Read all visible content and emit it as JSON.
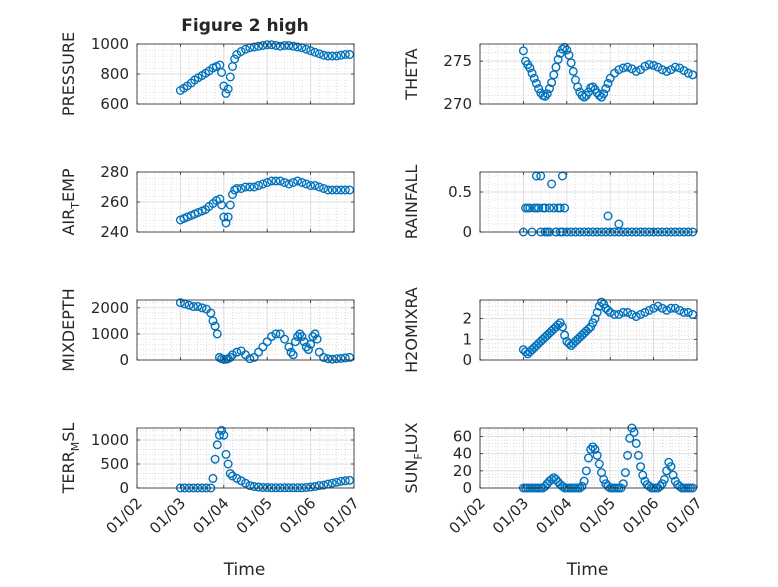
{
  "figure_title": "Figure 2 high",
  "marker_color": "#0072BD",
  "x_tick_labels": [
    "01/02",
    "01/03",
    "01/04",
    "01/05",
    "01/06",
    "01/07"
  ],
  "x_label": "Time",
  "chart_data": [
    {
      "type": "scatter",
      "ylabel": "PRESSURE",
      "ylim": [
        600,
        1000
      ],
      "yticks": [
        600,
        800,
        1000
      ],
      "xlim": [
        1,
        6
      ],
      "xticks": [
        1,
        2,
        3,
        4,
        5,
        6
      ],
      "grid": true,
      "x": [
        2.0,
        2.08,
        2.16,
        2.25,
        2.33,
        2.41,
        2.5,
        2.58,
        2.66,
        2.75,
        2.83,
        2.91,
        2.95,
        3.0,
        3.05,
        3.1,
        3.15,
        3.2,
        3.25,
        3.3,
        3.4,
        3.5,
        3.6,
        3.7,
        3.8,
        3.9,
        4.0,
        4.1,
        4.2,
        4.3,
        4.4,
        4.5,
        4.6,
        4.7,
        4.8,
        4.9,
        5.0,
        5.1,
        5.2,
        5.3,
        5.4,
        5.5,
        5.6,
        5.7,
        5.8,
        5.9
      ],
      "y": [
        690,
        705,
        720,
        740,
        760,
        775,
        790,
        805,
        820,
        840,
        850,
        860,
        810,
        720,
        670,
        700,
        780,
        850,
        900,
        930,
        950,
        965,
        975,
        980,
        985,
        990,
        995,
        995,
        990,
        985,
        990,
        990,
        985,
        980,
        975,
        965,
        955,
        945,
        935,
        925,
        920,
        920,
        920,
        925,
        930,
        930
      ]
    },
    {
      "type": "scatter",
      "ylabel": "THETA",
      "ylim": [
        270,
        277
      ],
      "yticks": [
        270,
        275
      ],
      "xlim": [
        1,
        6
      ],
      "xticks": [
        1,
        2,
        3,
        4,
        5,
        6
      ],
      "grid": true,
      "x": [
        2.0,
        2.05,
        2.1,
        2.15,
        2.2,
        2.25,
        2.3,
        2.35,
        2.4,
        2.45,
        2.5,
        2.55,
        2.6,
        2.65,
        2.7,
        2.75,
        2.8,
        2.85,
        2.9,
        2.95,
        3.0,
        3.05,
        3.1,
        3.15,
        3.2,
        3.25,
        3.3,
        3.35,
        3.4,
        3.45,
        3.5,
        3.55,
        3.6,
        3.65,
        3.7,
        3.75,
        3.8,
        3.85,
        3.9,
        3.95,
        4.0,
        4.1,
        4.2,
        4.3,
        4.4,
        4.5,
        4.6,
        4.7,
        4.8,
        4.9,
        5.0,
        5.1,
        5.2,
        5.3,
        5.4,
        5.5,
        5.6,
        5.7,
        5.8,
        5.9
      ],
      "y": [
        276.2,
        275.0,
        274.6,
        274.2,
        273.6,
        273.0,
        272.4,
        271.8,
        271.3,
        271.0,
        270.9,
        271.2,
        271.8,
        272.5,
        273.4,
        274.3,
        275.2,
        275.9,
        276.4,
        276.6,
        276.3,
        275.7,
        274.8,
        273.8,
        272.8,
        272.0,
        271.4,
        271.0,
        270.8,
        271.0,
        271.4,
        271.9,
        272.0,
        271.7,
        271.3,
        271.0,
        270.8,
        271.2,
        271.8,
        272.4,
        273.0,
        273.6,
        274.0,
        274.2,
        274.3,
        274.1,
        273.8,
        274.0,
        274.4,
        274.6,
        274.5,
        274.3,
        274.0,
        273.8,
        274.0,
        274.3,
        274.2,
        273.9,
        273.6,
        273.4
      ]
    },
    {
      "type": "scatter",
      "ylabel": "AIR_TEMP",
      "ylim": [
        240,
        280
      ],
      "yticks": [
        240,
        260,
        280
      ],
      "xlim": [
        1,
        6
      ],
      "xticks": [
        1,
        2,
        3,
        4,
        5,
        6
      ],
      "grid": true,
      "x": [
        2.0,
        2.08,
        2.16,
        2.25,
        2.33,
        2.41,
        2.5,
        2.58,
        2.66,
        2.75,
        2.83,
        2.91,
        2.95,
        3.0,
        3.05,
        3.1,
        3.15,
        3.2,
        3.25,
        3.3,
        3.4,
        3.5,
        3.6,
        3.7,
        3.8,
        3.9,
        4.0,
        4.1,
        4.2,
        4.3,
        4.4,
        4.5,
        4.6,
        4.7,
        4.8,
        4.9,
        5.0,
        5.1,
        5.2,
        5.3,
        5.4,
        5.5,
        5.6,
        5.7,
        5.8,
        5.9
      ],
      "y": [
        248,
        249,
        250,
        251,
        252,
        253,
        254,
        255,
        257,
        259,
        261,
        262,
        258,
        250,
        246,
        250,
        258,
        265,
        268,
        269,
        269,
        270,
        270,
        270,
        271,
        272,
        273,
        274,
        274,
        274,
        273,
        272,
        273,
        274,
        273,
        272,
        271,
        271,
        270,
        269,
        268,
        268,
        268,
        268,
        268,
        268
      ]
    },
    {
      "type": "scatter",
      "ylabel": "RAINFALL",
      "ylim": [
        0,
        0.75
      ],
      "yticks": [
        0,
        0.5
      ],
      "xlim": [
        1,
        6
      ],
      "xticks": [
        1,
        2,
        3,
        4,
        5,
        6
      ],
      "grid": true,
      "x": [
        2.0,
        2.05,
        2.1,
        2.15,
        2.2,
        2.25,
        2.3,
        2.35,
        2.4,
        2.45,
        2.5,
        2.55,
        2.6,
        2.65,
        2.7,
        2.75,
        2.8,
        2.85,
        2.9,
        2.95,
        2.3,
        2.4,
        2.5,
        2.6,
        2.75,
        2.85,
        2.9,
        3.0,
        3.1,
        3.2,
        3.3,
        3.4,
        3.5,
        3.6,
        3.7,
        3.8,
        3.9,
        4.0,
        4.1,
        4.2,
        4.3,
        4.4,
        4.5,
        4.6,
        4.7,
        4.8,
        4.9,
        5.0,
        5.1,
        5.2,
        5.3,
        5.4,
        5.5,
        5.6,
        5.7,
        5.8,
        5.9,
        3.95,
        4.2
      ],
      "y": [
        0.0,
        0.3,
        0.3,
        0.3,
        0.0,
        0.3,
        0.3,
        0.3,
        0.7,
        0.3,
        0.3,
        0.0,
        0.3,
        0.6,
        0.3,
        0.0,
        0.3,
        0.3,
        0.7,
        0.3,
        0.7,
        0.0,
        0.0,
        0.0,
        0.0,
        0.0,
        0.0,
        0.0,
        0.0,
        0.0,
        0.0,
        0.0,
        0.0,
        0.0,
        0.0,
        0.0,
        0.0,
        0.0,
        0.0,
        0.0,
        0.0,
        0.0,
        0.0,
        0.0,
        0.0,
        0.0,
        0.0,
        0.0,
        0.0,
        0.0,
        0.0,
        0.0,
        0.0,
        0.0,
        0.0,
        0.0,
        0.0,
        0.2,
        0.1
      ]
    },
    {
      "type": "scatter",
      "ylabel": "MIXDEPTH",
      "ylim": [
        0,
        2300
      ],
      "yticks": [
        0,
        1000,
        2000
      ],
      "xlim": [
        1,
        6
      ],
      "xticks": [
        1,
        2,
        3,
        4,
        5,
        6
      ],
      "grid": true,
      "x": [
        2.0,
        2.1,
        2.2,
        2.3,
        2.4,
        2.5,
        2.6,
        2.7,
        2.75,
        2.8,
        2.85,
        2.9,
        2.95,
        3.0,
        3.05,
        3.1,
        3.15,
        3.2,
        3.3,
        3.4,
        3.5,
        3.6,
        3.7,
        3.8,
        3.9,
        4.0,
        4.1,
        4.2,
        4.3,
        4.4,
        4.5,
        4.55,
        4.6,
        4.65,
        4.7,
        4.75,
        4.8,
        4.85,
        4.9,
        4.95,
        5.0,
        5.05,
        5.1,
        5.15,
        5.2,
        5.3,
        5.4,
        5.5,
        5.6,
        5.7,
        5.8,
        5.9
      ],
      "y": [
        2200,
        2150,
        2100,
        2050,
        2050,
        2000,
        1950,
        1800,
        1500,
        1300,
        1000,
        100,
        50,
        20,
        30,
        50,
        100,
        200,
        300,
        350,
        200,
        50,
        100,
        300,
        500,
        700,
        900,
        1000,
        1000,
        800,
        500,
        300,
        200,
        700,
        900,
        1000,
        900,
        700,
        500,
        400,
        600,
        900,
        1000,
        800,
        300,
        100,
        50,
        30,
        50,
        60,
        80,
        100
      ]
    },
    {
      "type": "scatter",
      "ylabel": "H2OMIXRA",
      "ylim": [
        0,
        2.9
      ],
      "yticks": [
        0,
        1,
        2
      ],
      "xlim": [
        1,
        6
      ],
      "xticks": [
        1,
        2,
        3,
        4,
        5,
        6
      ],
      "grid": true,
      "x": [
        2.0,
        2.05,
        2.1,
        2.15,
        2.2,
        2.25,
        2.3,
        2.35,
        2.4,
        2.45,
        2.5,
        2.55,
        2.6,
        2.65,
        2.7,
        2.75,
        2.8,
        2.85,
        2.9,
        2.95,
        3.0,
        3.05,
        3.1,
        3.15,
        3.2,
        3.25,
        3.3,
        3.35,
        3.4,
        3.45,
        3.5,
        3.55,
        3.6,
        3.65,
        3.7,
        3.75,
        3.8,
        3.85,
        3.9,
        3.95,
        4.0,
        4.1,
        4.2,
        4.3,
        4.4,
        4.5,
        4.6,
        4.7,
        4.8,
        4.9,
        5.0,
        5.1,
        5.2,
        5.3,
        5.4,
        5.5,
        5.6,
        5.7,
        5.8,
        5.9
      ],
      "y": [
        0.5,
        0.4,
        0.3,
        0.4,
        0.5,
        0.6,
        0.7,
        0.8,
        0.9,
        1.0,
        1.1,
        1.2,
        1.3,
        1.4,
        1.5,
        1.6,
        1.7,
        1.8,
        1.6,
        1.2,
        0.9,
        0.8,
        0.7,
        0.8,
        0.9,
        1.0,
        1.1,
        1.2,
        1.3,
        1.4,
        1.5,
        1.6,
        1.8,
        2.0,
        2.3,
        2.6,
        2.8,
        2.7,
        2.5,
        2.4,
        2.3,
        2.2,
        2.2,
        2.3,
        2.3,
        2.2,
        2.1,
        2.2,
        2.3,
        2.4,
        2.5,
        2.6,
        2.5,
        2.4,
        2.5,
        2.5,
        2.4,
        2.3,
        2.3,
        2.2
      ]
    },
    {
      "type": "scatter",
      "ylabel": "TERR_MSL",
      "ylim": [
        0,
        1250
      ],
      "yticks": [
        0,
        500,
        1000
      ],
      "xlim": [
        1,
        6
      ],
      "xticks": [
        1,
        2,
        3,
        4,
        5,
        6
      ],
      "grid": true,
      "x": [
        2.0,
        2.1,
        2.2,
        2.3,
        2.4,
        2.5,
        2.6,
        2.7,
        2.75,
        2.8,
        2.85,
        2.9,
        2.95,
        3.0,
        3.05,
        3.1,
        3.15,
        3.2,
        3.3,
        3.4,
        3.5,
        3.6,
        3.7,
        3.8,
        3.9,
        4.0,
        4.1,
        4.2,
        4.3,
        4.4,
        4.5,
        4.6,
        4.7,
        4.8,
        4.9,
        5.0,
        5.1,
        5.2,
        5.3,
        5.4,
        5.5,
        5.6,
        5.7,
        5.8,
        5.9
      ],
      "y": [
        0,
        0,
        0,
        0,
        0,
        0,
        0,
        0,
        200,
        600,
        900,
        1100,
        1200,
        1100,
        700,
        500,
        300,
        250,
        200,
        150,
        100,
        50,
        30,
        20,
        10,
        10,
        5,
        5,
        5,
        5,
        5,
        5,
        5,
        5,
        10,
        20,
        30,
        50,
        60,
        80,
        100,
        120,
        140,
        150,
        160
      ]
    },
    {
      "type": "scatter",
      "ylabel": "SUN_FLUX",
      "ylim": [
        0,
        70
      ],
      "yticks": [
        0,
        20,
        40,
        60
      ],
      "xlim": [
        1,
        6
      ],
      "xticks": [
        1,
        2,
        3,
        4,
        5,
        6
      ],
      "grid": true,
      "x": [
        2.0,
        2.05,
        2.1,
        2.15,
        2.2,
        2.25,
        2.3,
        2.35,
        2.4,
        2.45,
        2.5,
        2.55,
        2.6,
        2.65,
        2.7,
        2.75,
        2.8,
        2.85,
        2.9,
        2.95,
        3.0,
        3.05,
        3.1,
        3.15,
        3.2,
        3.25,
        3.3,
        3.35,
        3.4,
        3.45,
        3.5,
        3.55,
        3.6,
        3.65,
        3.7,
        3.75,
        3.8,
        3.85,
        3.9,
        3.95,
        4.0,
        4.05,
        4.1,
        4.15,
        4.2,
        4.25,
        4.3,
        4.35,
        4.4,
        4.45,
        4.5,
        4.55,
        4.6,
        4.65,
        4.7,
        4.75,
        4.8,
        4.85,
        4.9,
        4.95,
        5.0,
        5.05,
        5.1,
        5.15,
        5.2,
        5.25,
        5.3,
        5.35,
        5.4,
        5.45,
        5.5,
        5.55,
        5.6,
        5.65,
        5.7,
        5.75,
        5.8,
        5.85,
        5.9
      ],
      "y": [
        0,
        0,
        0,
        0,
        0,
        0,
        0,
        0,
        0,
        0,
        2,
        5,
        8,
        10,
        12,
        10,
        7,
        4,
        2,
        0,
        0,
        0,
        0,
        0,
        0,
        0,
        0,
        2,
        8,
        20,
        35,
        45,
        48,
        45,
        38,
        28,
        18,
        10,
        5,
        2,
        0,
        0,
        0,
        0,
        0,
        0,
        5,
        18,
        38,
        58,
        70,
        65,
        52,
        38,
        25,
        15,
        8,
        4,
        2,
        0,
        0,
        0,
        0,
        2,
        5,
        10,
        20,
        30,
        25,
        15,
        8,
        4,
        2,
        0,
        0,
        0,
        0,
        0,
        0
      ]
    }
  ]
}
